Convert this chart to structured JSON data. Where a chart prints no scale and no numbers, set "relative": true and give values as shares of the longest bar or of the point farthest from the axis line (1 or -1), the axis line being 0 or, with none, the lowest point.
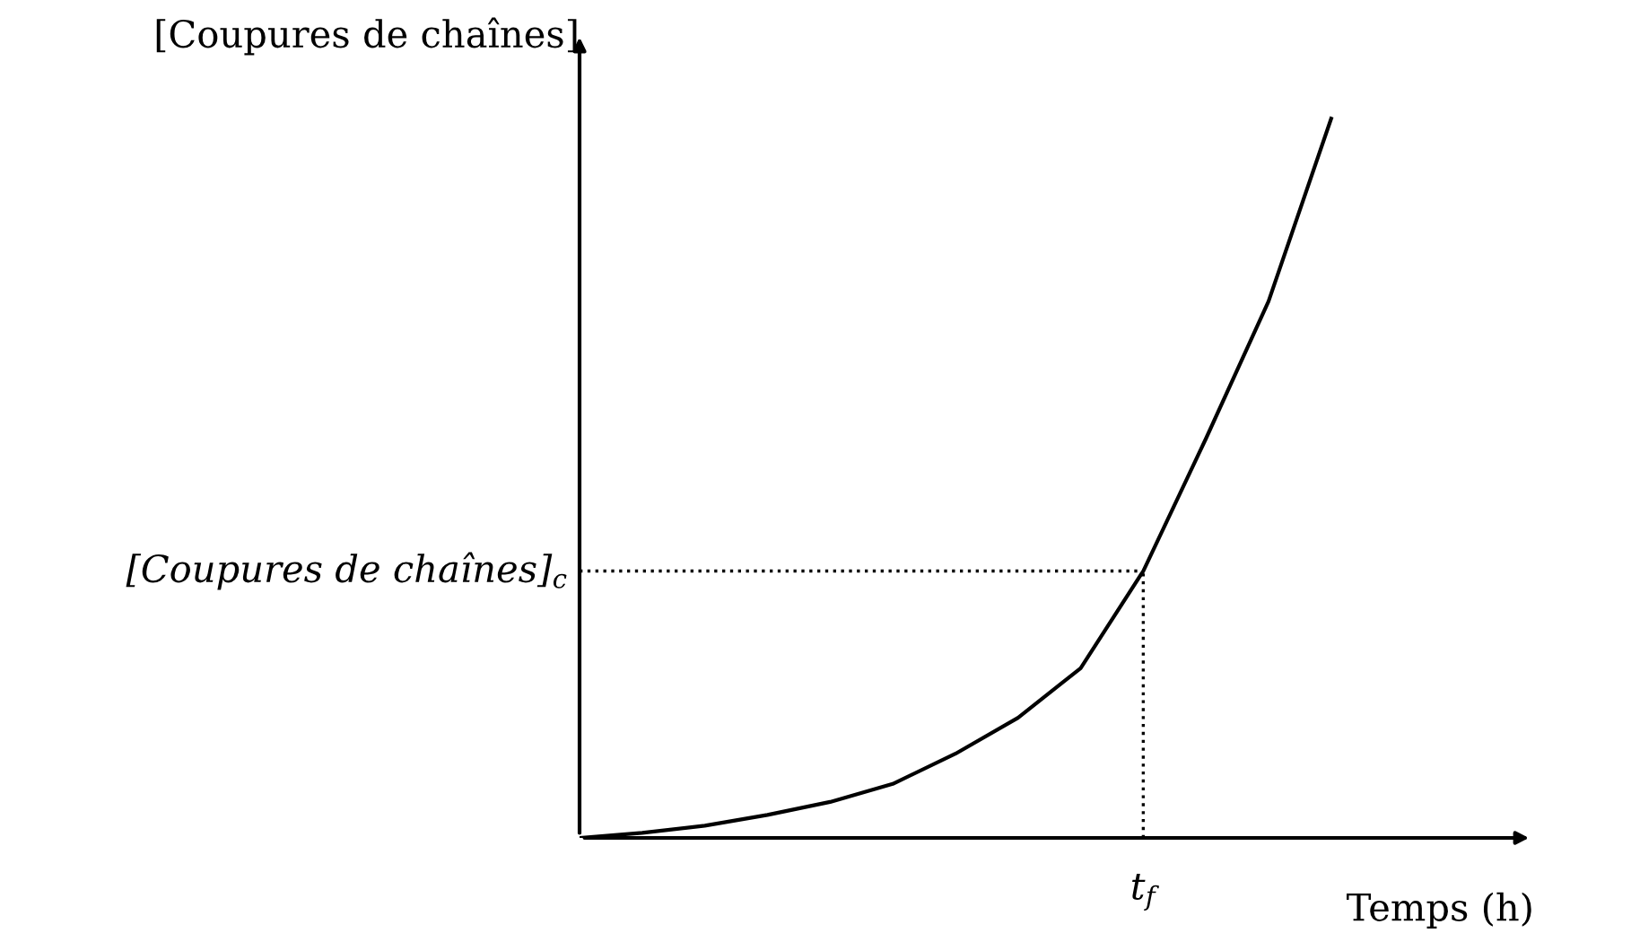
{
  "chart_data": {
    "type": "line",
    "relative": true,
    "xlabel": "Temps (h)",
    "ylabel": "[Coupures de chaînes]",
    "categories": [
      null,
      null,
      null,
      null,
      null,
      null,
      null,
      null,
      null,
      null,
      null,
      null,
      null
    ],
    "annotations": [
      "t$_{f}$"
    ],
    "series": [
      {
        "color": "#000000",
        "values": [
          0,
          0.007,
          0.017,
          0.032,
          0.05,
          0.075,
          0.117,
          0.167,
          0.236,
          0.371,
          0.555,
          0.746,
          1
        ]
      }
    ],
    "ref_lines": [
      {
        "axis": "y",
        "value": 0.371,
        "label": "[Coupures de chaînes]$_{c}$",
        "line_style": "dotted",
        "color": "#000000"
      }
    ],
    "marker": "none",
    "line_style": "solid"
  }
}
